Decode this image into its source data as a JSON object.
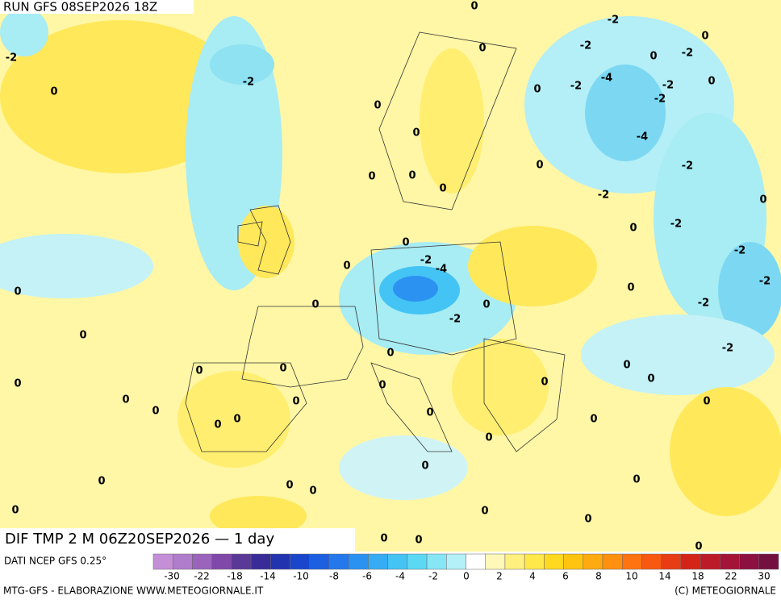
{
  "header": {
    "run": "RUN GFS 08SEP2026 18Z",
    "caption": "DIF TMP 2 M 06Z20SEP2026 — 1 day"
  },
  "map": {
    "labels": [
      "0",
      "-2",
      "-2",
      "-2",
      "0",
      "0",
      "-2",
      "0",
      "-4",
      "-2",
      "0",
      "-2",
      "0",
      "-2",
      "0",
      "-2",
      "0",
      "0",
      "-4",
      "0",
      "-2",
      "0",
      "0",
      "0",
      "-2",
      "0",
      "-2",
      "0",
      "0",
      "-2",
      "-2",
      "0",
      "-4",
      "-2",
      "0",
      "0",
      "-2",
      "0",
      "0",
      "-2",
      "0",
      "-2",
      "0",
      "0",
      "0",
      "0",
      "0",
      "0",
      "0",
      "0",
      "0",
      "0",
      "0",
      "0",
      "0",
      "0",
      "0",
      "0",
      "0",
      "0",
      "0",
      "0",
      "0",
      "0",
      "0",
      "0",
      "0",
      "0",
      "0",
      "0"
    ]
  },
  "legend": {
    "source": "DATI NCEP GFS 0.25°",
    "colors": [
      "#c58fd8",
      "#b07ccc",
      "#9a63bc",
      "#8048a8",
      "#5a3898",
      "#3a2c98",
      "#2233b0",
      "#1a46cc",
      "#1c5fe0",
      "#2478ec",
      "#2c92f2",
      "#36acf4",
      "#44c4f4",
      "#5ad8f4",
      "#86e6f6",
      "#b4f0f8",
      "#ffffff",
      "#fff8b8",
      "#fff080",
      "#ffe84a",
      "#ffd820",
      "#ffc410",
      "#ffaa10",
      "#ff9010",
      "#ff7410",
      "#f85810",
      "#e83c14",
      "#d42418",
      "#bc1a28",
      "#a41438",
      "#8c1040",
      "#741040"
    ],
    "ticks": [
      "-30",
      "-22",
      "-18",
      "-14",
      "-10",
      "-8",
      "-6",
      "-4",
      "-2",
      "0",
      "2",
      "4",
      "6",
      "8",
      "10",
      "14",
      "18",
      "22",
      "30"
    ]
  },
  "footer": {
    "left": "MTG-GFS - ELABORAZIONE WWW.METEOGIORNALE.IT",
    "right": "(C) METEOGIORNALE"
  }
}
